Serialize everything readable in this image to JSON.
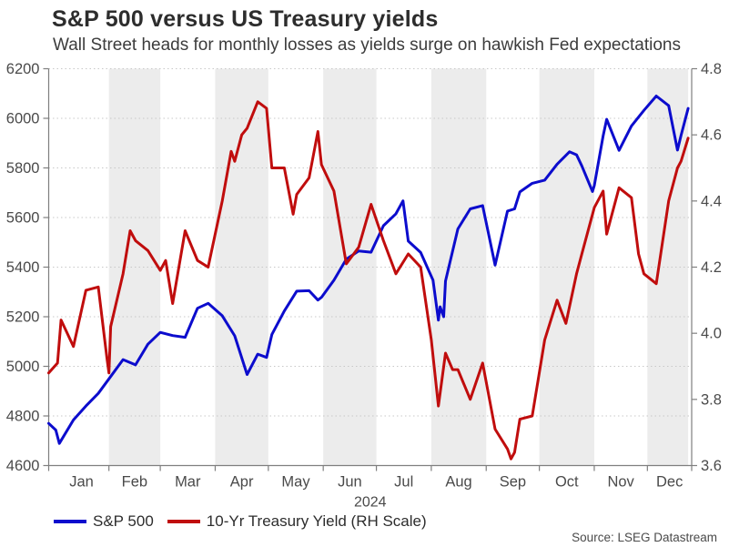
{
  "header": {
    "title": "S&P 500 versus US Treasury yields",
    "subtitle": "Wall Street heads for monthly losses as yields surge on hawkish Fed expectations"
  },
  "source_label": "Source: LSEG Datastream",
  "legend": [
    {
      "label": "S&P 500",
      "color": "#0c0ccd"
    },
    {
      "label": "10-Yr Treasury Yield (RH Scale)",
      "color": "#c00d0d"
    }
  ],
  "chart_data": {
    "type": "line",
    "title": "S&P 500 versus US Treasury yields",
    "subtitle": "Wall Street heads for monthly losses as yields surge on hawkish Fed expectations",
    "year_label": "2024",
    "x_unit": "days since 2023-12-29",
    "x_domain": [
      0,
      363
    ],
    "x_data_end": 361,
    "month_labels": [
      "Jan",
      "Feb",
      "Mar",
      "Apr",
      "May",
      "Jun",
      "Jul",
      "Aug",
      "Sep",
      "Oct",
      "Nov",
      "Dec"
    ],
    "month_start_days": [
      3,
      34,
      63,
      94,
      124,
      155,
      185,
      216,
      247,
      277,
      308,
      338
    ],
    "shaded_month_indices": [
      1,
      3,
      5,
      7,
      9,
      11
    ],
    "grid": "dotted-horizontal",
    "legend_position": "bottom-left",
    "band_color": "#ececec",
    "grid_color": "#c8c8c8",
    "axis_color": "#7f7f7f",
    "label_color": "#4a4a4a",
    "left_axis": {
      "series": "S&P 500",
      "min": 4600,
      "max": 6200,
      "ticks": [
        6200,
        6000,
        5800,
        5600,
        5400,
        5200,
        5000,
        4800,
        4600
      ]
    },
    "right_axis": {
      "series": "10-Yr Treasury Yield",
      "min": 3.6,
      "max": 4.8,
      "ticks": [
        4.8,
        4.6,
        4.4,
        4.2,
        4.0,
        3.8,
        3.6
      ]
    },
    "series": [
      {
        "name": "S&P 500",
        "axis": "left",
        "color": "#0c0ccd",
        "points": [
          [
            0,
            4770
          ],
          [
            4,
            4743
          ],
          [
            6,
            4689
          ],
          [
            14,
            4784
          ],
          [
            21,
            4840
          ],
          [
            28,
            4891
          ],
          [
            35,
            4959
          ],
          [
            42,
            5027
          ],
          [
            49,
            5006
          ],
          [
            56,
            5089
          ],
          [
            63,
            5137
          ],
          [
            70,
            5124
          ],
          [
            77,
            5117
          ],
          [
            84,
            5234
          ],
          [
            90,
            5254
          ],
          [
            98,
            5204
          ],
          [
            105,
            5123
          ],
          [
            112,
            4967
          ],
          [
            118,
            5049
          ],
          [
            123,
            5036
          ],
          [
            126,
            5128
          ],
          [
            133,
            5223
          ],
          [
            140,
            5303
          ],
          [
            147,
            5305
          ],
          [
            152,
            5267
          ],
          [
            154,
            5278
          ],
          [
            161,
            5347
          ],
          [
            168,
            5432
          ],
          [
            175,
            5465
          ],
          [
            182,
            5460
          ],
          [
            189,
            5567
          ],
          [
            196,
            5615
          ],
          [
            200,
            5667
          ],
          [
            203,
            5505
          ],
          [
            210,
            5459
          ],
          [
            217,
            5347
          ],
          [
            220,
            5186
          ],
          [
            221,
            5240
          ],
          [
            223,
            5200
          ],
          [
            224,
            5344
          ],
          [
            231,
            5554
          ],
          [
            238,
            5635
          ],
          [
            245,
            5648
          ],
          [
            252,
            5408
          ],
          [
            259,
            5626
          ],
          [
            263,
            5635
          ],
          [
            266,
            5703
          ],
          [
            273,
            5738
          ],
          [
            280,
            5751
          ],
          [
            287,
            5815
          ],
          [
            294,
            5865
          ],
          [
            298,
            5853
          ],
          [
            301,
            5808
          ],
          [
            307,
            5705
          ],
          [
            308,
            5729
          ],
          [
            313,
            5929
          ],
          [
            315,
            5996
          ],
          [
            322,
            5871
          ],
          [
            329,
            5969
          ],
          [
            336,
            6032
          ],
          [
            343,
            6090
          ],
          [
            350,
            6051
          ],
          [
            355,
            5872
          ],
          [
            357,
            5931
          ],
          [
            361,
            6040
          ]
        ]
      },
      {
        "name": "10-Yr Treasury Yield (RH Scale)",
        "axis": "right",
        "color": "#c00d0d",
        "points": [
          [
            0,
            3.88
          ],
          [
            5,
            3.91
          ],
          [
            7,
            4.04
          ],
          [
            14,
            3.96
          ],
          [
            21,
            4.13
          ],
          [
            28,
            4.14
          ],
          [
            33,
            3.92
          ],
          [
            34,
            3.88
          ],
          [
            35,
            4.02
          ],
          [
            42,
            4.18
          ],
          [
            46,
            4.31
          ],
          [
            49,
            4.28
          ],
          [
            56,
            4.25
          ],
          [
            63,
            4.19
          ],
          [
            66,
            4.22
          ],
          [
            70,
            4.09
          ],
          [
            77,
            4.31
          ],
          [
            84,
            4.22
          ],
          [
            90,
            4.2
          ],
          [
            98,
            4.4
          ],
          [
            103,
            4.55
          ],
          [
            105,
            4.52
          ],
          [
            109,
            4.6
          ],
          [
            112,
            4.62
          ],
          [
            118,
            4.7
          ],
          [
            123,
            4.68
          ],
          [
            126,
            4.5
          ],
          [
            133,
            4.5
          ],
          [
            138,
            4.36
          ],
          [
            140,
            4.42
          ],
          [
            147,
            4.47
          ],
          [
            152,
            4.61
          ],
          [
            154,
            4.51
          ],
          [
            161,
            4.43
          ],
          [
            168,
            4.21
          ],
          [
            175,
            4.26
          ],
          [
            182,
            4.39
          ],
          [
            189,
            4.28
          ],
          [
            196,
            4.18
          ],
          [
            203,
            4.24
          ],
          [
            210,
            4.2
          ],
          [
            216,
            3.98
          ],
          [
            220,
            3.78
          ],
          [
            224,
            3.94
          ],
          [
            228,
            3.89
          ],
          [
            231,
            3.89
          ],
          [
            238,
            3.8
          ],
          [
            245,
            3.91
          ],
          [
            252,
            3.71
          ],
          [
            259,
            3.65
          ],
          [
            261,
            3.62
          ],
          [
            263,
            3.64
          ],
          [
            266,
            3.74
          ],
          [
            273,
            3.75
          ],
          [
            280,
            3.98
          ],
          [
            287,
            4.1
          ],
          [
            292,
            4.03
          ],
          [
            298,
            4.18
          ],
          [
            301,
            4.24
          ],
          [
            308,
            4.38
          ],
          [
            313,
            4.43
          ],
          [
            315,
            4.3
          ],
          [
            322,
            4.44
          ],
          [
            329,
            4.41
          ],
          [
            333,
            4.24
          ],
          [
            336,
            4.18
          ],
          [
            343,
            4.15
          ],
          [
            350,
            4.4
          ],
          [
            355,
            4.5
          ],
          [
            357,
            4.52
          ],
          [
            361,
            4.59
          ]
        ]
      }
    ]
  }
}
